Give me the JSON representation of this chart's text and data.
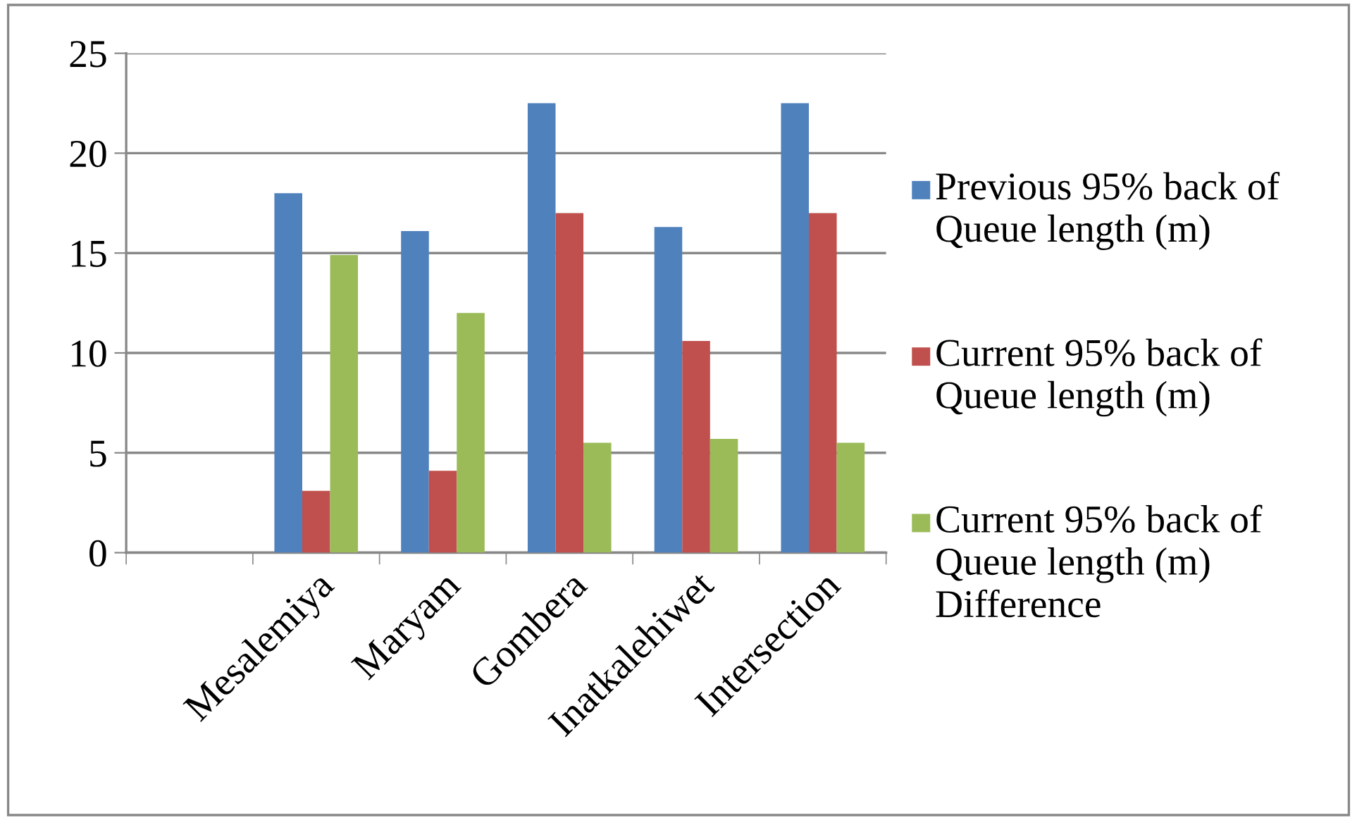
{
  "chart_data": {
    "type": "bar",
    "categories": [
      null,
      "Mesalemiya",
      "Maryam",
      "Gombera",
      "Inatkalehiwet",
      "Intersection"
    ],
    "series": [
      {
        "name": "Previous 95% back of Queue length (m)",
        "color": "#4f81bd",
        "values": [
          null,
          18.0,
          16.1,
          22.5,
          16.3,
          22.5
        ]
      },
      {
        "name": "Current 95% back of Queue length (m)",
        "color": "#c0504d",
        "values": [
          null,
          3.1,
          4.1,
          17.0,
          10.6,
          17.0
        ]
      },
      {
        "name": "Current 95% back of Queue length (m) Difference",
        "color": "#9bbb59",
        "values": [
          null,
          14.9,
          12.0,
          5.5,
          5.7,
          5.5
        ]
      }
    ],
    "ylim": [
      0,
      25
    ],
    "yticks": [
      0,
      5,
      10,
      15,
      20,
      25
    ],
    "grid": "y",
    "legend": "right"
  }
}
